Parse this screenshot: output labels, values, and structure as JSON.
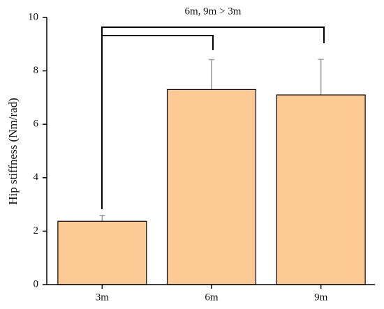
{
  "chart_data": {
    "type": "bar",
    "y_label": "Hip stiffness (Nm/rad)",
    "categories": [
      "3m",
      "6m",
      "9m"
    ],
    "values": [
      2.37,
      7.3,
      7.1
    ],
    "errors": [
      0.22,
      1.12,
      1.33
    ],
    "color": "#fdca96",
    "error_color": "#999999",
    "ylim": [
      0,
      10
    ],
    "yticks": [
      0,
      2,
      4,
      6,
      8,
      10
    ],
    "annotation": "6m, 9m > 3m"
  }
}
